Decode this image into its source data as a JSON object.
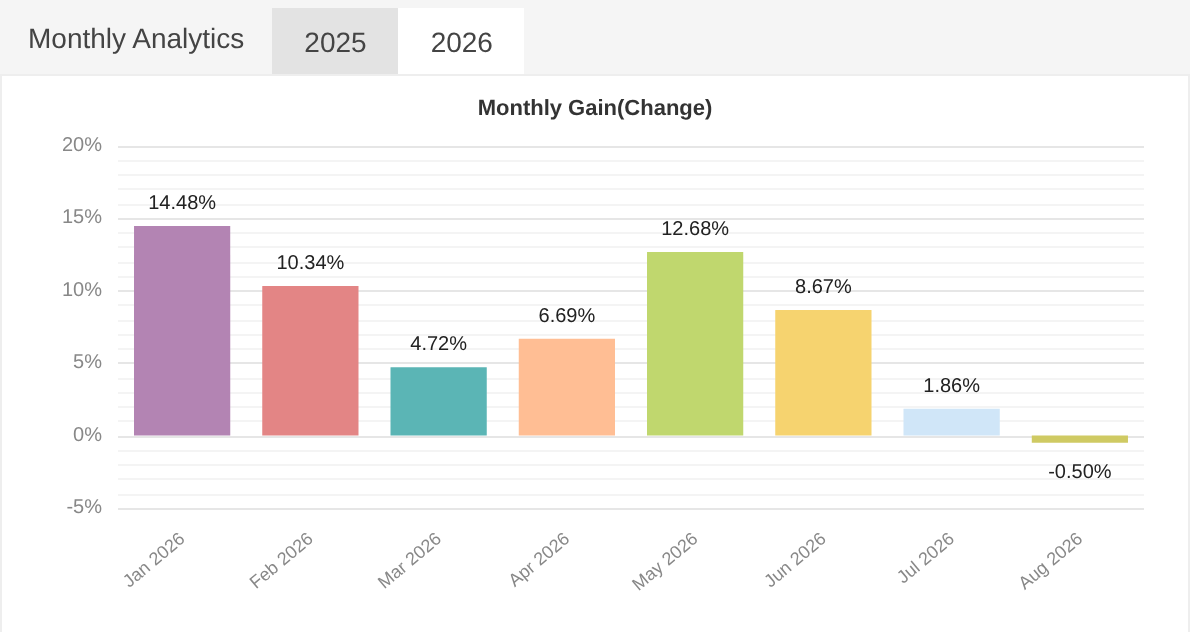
{
  "chart_data": {
    "type": "bar",
    "title": "Monthly Gain(Change)",
    "annotations": [
      "Monthly Analytics",
      "2025",
      "2026"
    ],
    "categories": [
      "Jan 2026",
      "Feb 2026",
      "Mar 2026",
      "Apr 2026",
      "May 2026",
      "Jun 2026",
      "Jul 2026",
      "Aug 2026"
    ],
    "values": [
      14.48,
      10.34,
      4.72,
      6.69,
      12.68,
      8.67,
      1.86,
      -0.5
    ],
    "colors": [
      "#b384b3",
      "#e38585",
      "#5bb5b5",
      "#ffbe94",
      "#c0d76e",
      "#f6d36f",
      "#d0e6f8",
      "#cfca63"
    ],
    "value_labels": [
      "14.48%",
      "10.34%",
      "4.72%",
      "6.69%",
      "12.68%",
      "8.67%",
      "1.86%",
      "-0.50%"
    ],
    "ylim": [
      -5,
      20
    ],
    "yticks": [
      {
        "value": -5,
        "label": "-5%"
      },
      {
        "value": 0,
        "label": "0%"
      },
      {
        "value": 5,
        "label": "5%"
      },
      {
        "value": 10,
        "label": "10%"
      },
      {
        "value": 15,
        "label": "15%"
      },
      {
        "value": 20,
        "label": "20%"
      }
    ],
    "grid": "y"
  }
}
